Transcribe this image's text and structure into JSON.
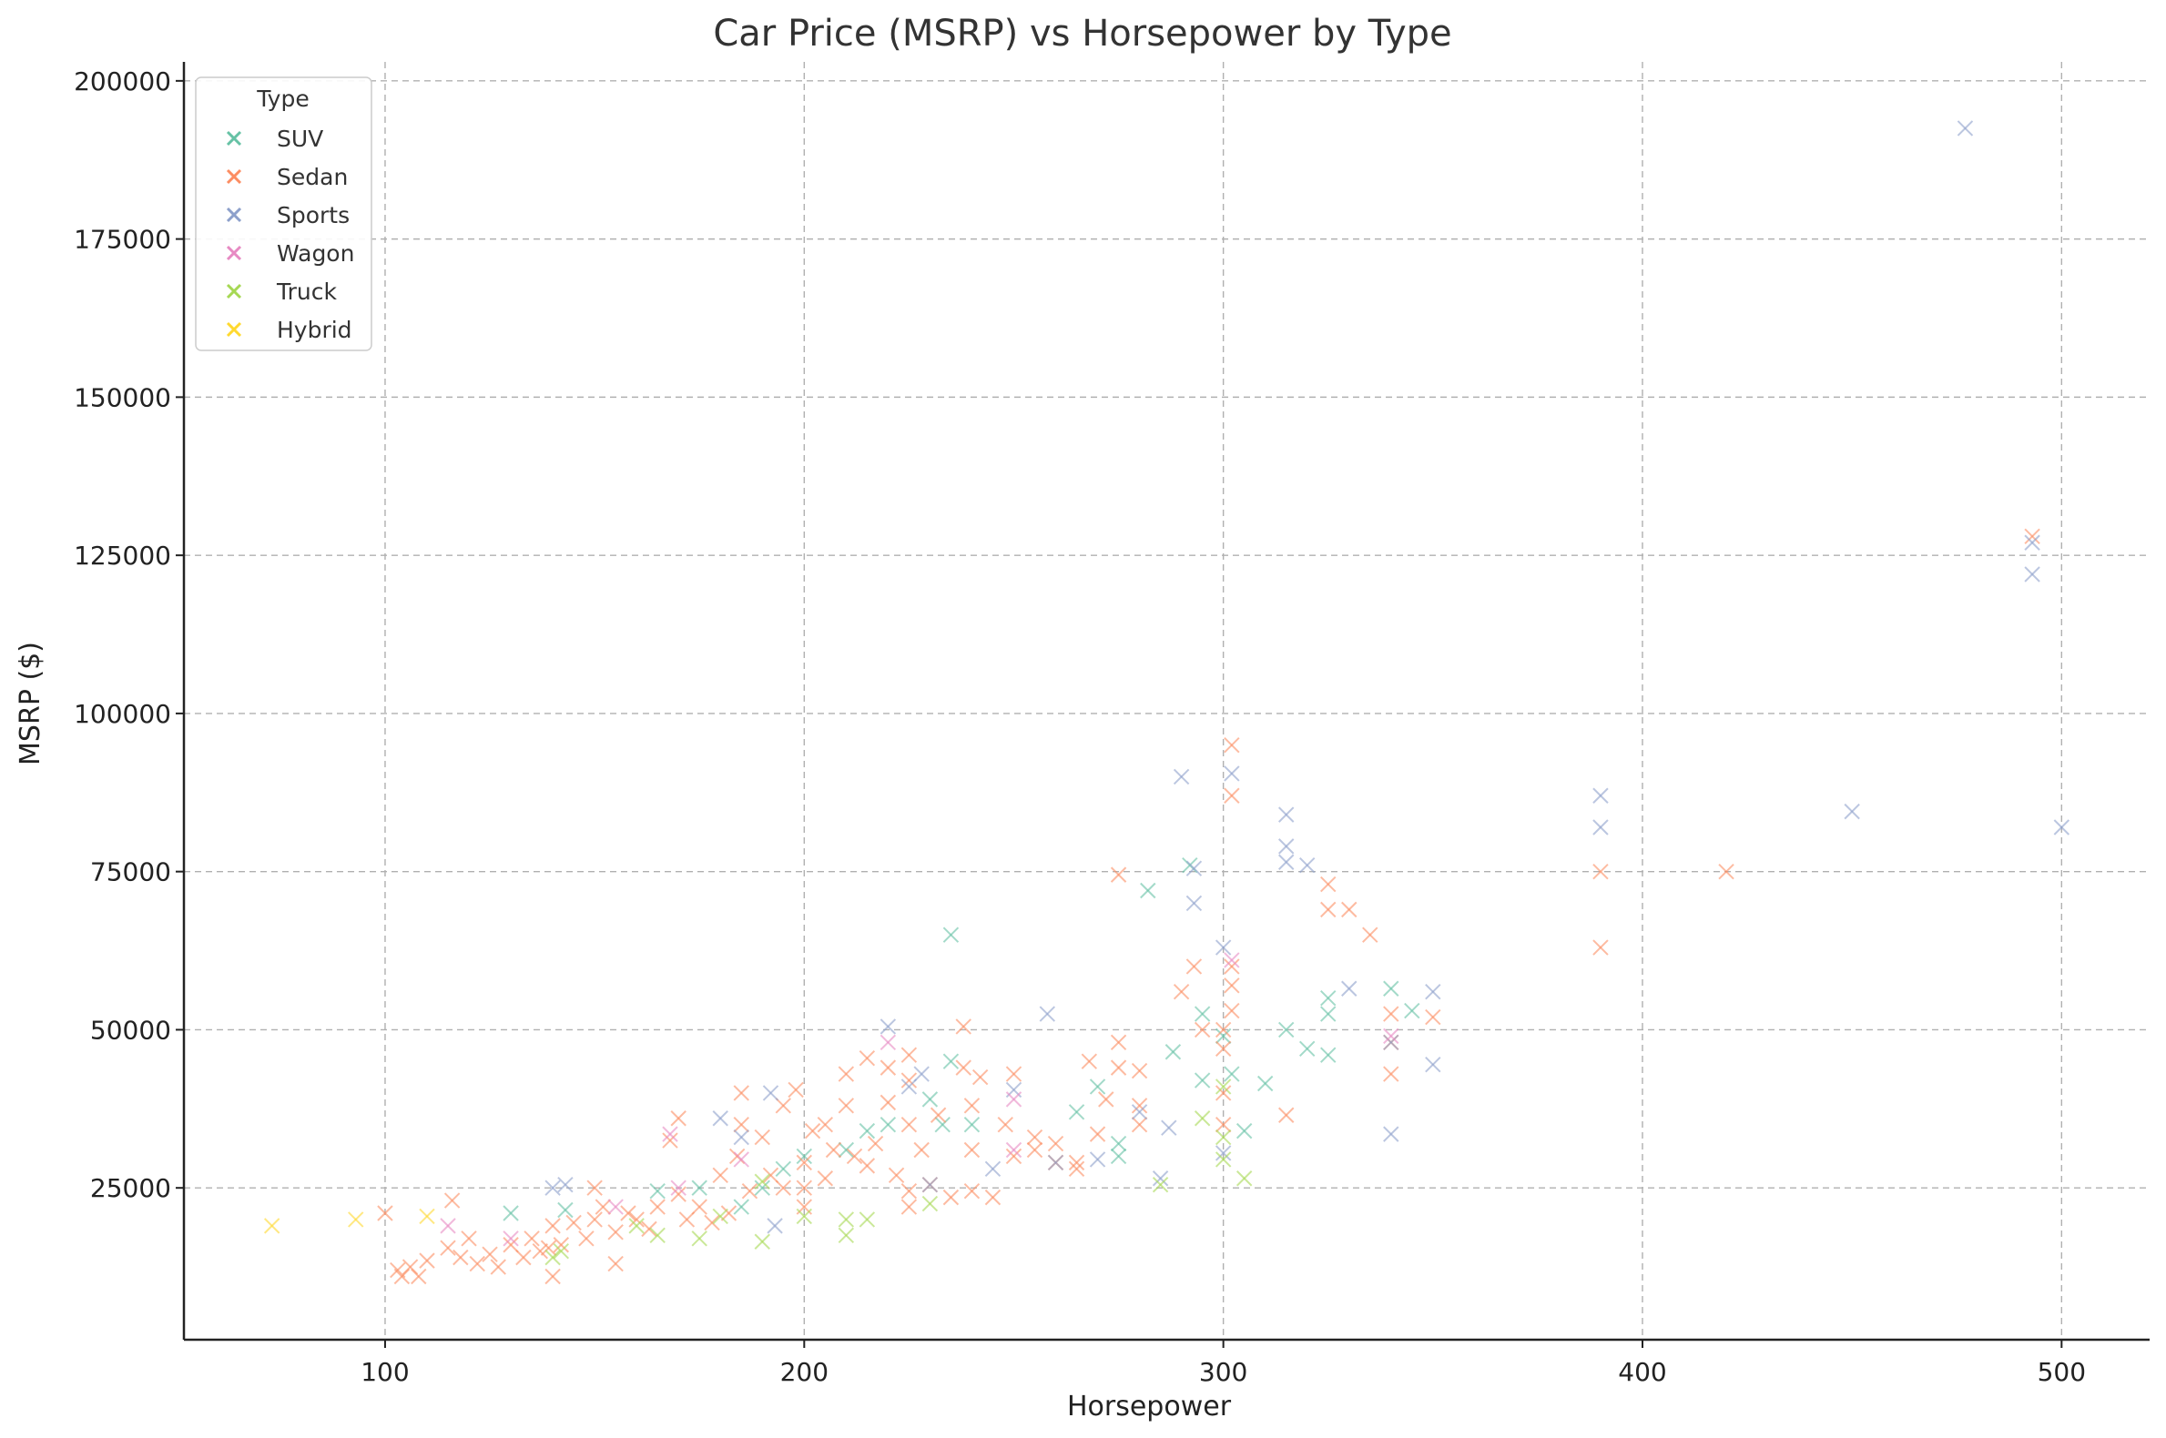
{
  "chart_data": {
    "type": "scatter",
    "title": "Car Price (MSRP) vs Horsepower by Type",
    "xlabel": "Horsepower",
    "ylabel": "MSRP ($)",
    "xlim": [
      52,
      521
    ],
    "ylim": [
      1000,
      203000
    ],
    "xticks": [
      100,
      200,
      300,
      400,
      500
    ],
    "yticks": [
      25000,
      50000,
      75000,
      100000,
      125000,
      150000,
      175000,
      200000
    ],
    "grid": true,
    "marker": "x",
    "legend": {
      "title": "Type",
      "placement": "top-left"
    },
    "colors": {
      "SUV": "#66c2a5",
      "Sedan": "#fc8d62",
      "Sports": "#8da0cb",
      "Wagon": "#e78ac3",
      "Truck": "#a6d854",
      "Hybrid": "#ffd92f"
    },
    "series": [
      {
        "name": "SUV",
        "points": [
          [
            130,
            21000
          ],
          [
            143,
            21500
          ],
          [
            165,
            24500
          ],
          [
            175,
            25000
          ],
          [
            185,
            22000
          ],
          [
            195,
            28000
          ],
          [
            200,
            30000
          ],
          [
            210,
            31000
          ],
          [
            215,
            34000
          ],
          [
            230,
            39000
          ],
          [
            233,
            35000
          ],
          [
            235,
            45000
          ],
          [
            235,
            65000
          ],
          [
            240,
            35000
          ],
          [
            265,
            37000
          ],
          [
            270,
            41000
          ],
          [
            275,
            32000
          ],
          [
            275,
            30000
          ],
          [
            282,
            72000
          ],
          [
            288,
            46500
          ],
          [
            292,
            76000
          ],
          [
            295,
            52500
          ],
          [
            295,
            42000
          ],
          [
            300,
            49000
          ],
          [
            302,
            43000
          ],
          [
            305,
            34000
          ],
          [
            310,
            41500
          ],
          [
            315,
            50000
          ],
          [
            320,
            47000
          ],
          [
            325,
            52500
          ],
          [
            325,
            46000
          ],
          [
            325,
            55000
          ],
          [
            340,
            56500
          ],
          [
            345,
            53000
          ],
          [
            190,
            25000
          ],
          [
            220,
            35000
          ]
        ]
      },
      {
        "name": "Sedan",
        "points": [
          [
            100,
            21000
          ],
          [
            103,
            12000
          ],
          [
            104,
            11000
          ],
          [
            106,
            12500
          ],
          [
            108,
            11000
          ],
          [
            110,
            13500
          ],
          [
            115,
            15500
          ],
          [
            116,
            23000
          ],
          [
            118,
            14000
          ],
          [
            120,
            17000
          ],
          [
            122,
            13000
          ],
          [
            125,
            14500
          ],
          [
            127,
            12500
          ],
          [
            130,
            16000
          ],
          [
            133,
            14000
          ],
          [
            135,
            17000
          ],
          [
            137,
            15000
          ],
          [
            139,
            15500
          ],
          [
            140,
            11000
          ],
          [
            140,
            19000
          ],
          [
            142,
            16000
          ],
          [
            145,
            19500
          ],
          [
            148,
            17000
          ],
          [
            150,
            25000
          ],
          [
            150,
            20000
          ],
          [
            152,
            22000
          ],
          [
            155,
            13000
          ],
          [
            155,
            18000
          ],
          [
            158,
            21000
          ],
          [
            160,
            20000
          ],
          [
            163,
            18500
          ],
          [
            165,
            22000
          ],
          [
            168,
            32500
          ],
          [
            170,
            36000
          ],
          [
            170,
            24000
          ],
          [
            172,
            20000
          ],
          [
            175,
            22000
          ],
          [
            178,
            19500
          ],
          [
            180,
            27000
          ],
          [
            182,
            21000
          ],
          [
            184,
            30000
          ],
          [
            185,
            40000
          ],
          [
            185,
            35000
          ],
          [
            187,
            24500
          ],
          [
            190,
            33000
          ],
          [
            192,
            27000
          ],
          [
            195,
            38000
          ],
          [
            195,
            25000
          ],
          [
            198,
            40500
          ],
          [
            200,
            22000
          ],
          [
            200,
            25000
          ],
          [
            200,
            29000
          ],
          [
            202,
            34000
          ],
          [
            205,
            35000
          ],
          [
            207,
            31000
          ],
          [
            210,
            43000
          ],
          [
            210,
            38000
          ],
          [
            212,
            30000
          ],
          [
            215,
            45500
          ],
          [
            215,
            28500
          ],
          [
            217,
            32000
          ],
          [
            220,
            44000
          ],
          [
            220,
            38500
          ],
          [
            222,
            27000
          ],
          [
            225,
            46000
          ],
          [
            225,
            42000
          ],
          [
            225,
            35000
          ],
          [
            225,
            24500
          ],
          [
            225,
            22000
          ],
          [
            228,
            31000
          ],
          [
            230,
            25500
          ],
          [
            232,
            36500
          ],
          [
            235,
            23500
          ],
          [
            238,
            44000
          ],
          [
            238,
            50500
          ],
          [
            240,
            38000
          ],
          [
            240,
            31000
          ],
          [
            240,
            24500
          ],
          [
            242,
            42500
          ],
          [
            245,
            23500
          ],
          [
            248,
            35000
          ],
          [
            250,
            43000
          ],
          [
            250,
            30000
          ],
          [
            255,
            33000
          ],
          [
            255,
            31000
          ],
          [
            260,
            32000
          ],
          [
            260,
            29000
          ],
          [
            265,
            29000
          ],
          [
            265,
            28000
          ],
          [
            268,
            45000
          ],
          [
            270,
            33500
          ],
          [
            272,
            39000
          ],
          [
            275,
            74500
          ],
          [
            275,
            48000
          ],
          [
            275,
            44000
          ],
          [
            280,
            43500
          ],
          [
            280,
            38000
          ],
          [
            280,
            35000
          ],
          [
            290,
            56000
          ],
          [
            293,
            60000
          ],
          [
            295,
            50000
          ],
          [
            300,
            50000
          ],
          [
            300,
            47000
          ],
          [
            300,
            35000
          ],
          [
            302,
            95000
          ],
          [
            302,
            87000
          ],
          [
            302,
            60000
          ],
          [
            302,
            57000
          ],
          [
            302,
            53000
          ],
          [
            315,
            36500
          ],
          [
            325,
            73000
          ],
          [
            325,
            69000
          ],
          [
            330,
            69000
          ],
          [
            335,
            65000
          ],
          [
            340,
            52500
          ],
          [
            340,
            48000
          ],
          [
            340,
            43000
          ],
          [
            350,
            52000
          ],
          [
            390,
            75000
          ],
          [
            390,
            63000
          ],
          [
            420,
            75000
          ],
          [
            493,
            128000
          ],
          [
            300,
            40000
          ],
          [
            205,
            26500
          ]
        ]
      },
      {
        "name": "Sports",
        "points": [
          [
            140,
            25000
          ],
          [
            143,
            25500
          ],
          [
            180,
            36000
          ],
          [
            185,
            33000
          ],
          [
            192,
            40000
          ],
          [
            193,
            19000
          ],
          [
            220,
            50500
          ],
          [
            225,
            41000
          ],
          [
            228,
            43000
          ],
          [
            230,
            25500
          ],
          [
            245,
            28000
          ],
          [
            250,
            40500
          ],
          [
            258,
            52500
          ],
          [
            260,
            29000
          ],
          [
            270,
            29500
          ],
          [
            280,
            37000
          ],
          [
            285,
            26500
          ],
          [
            287,
            34500
          ],
          [
            290,
            90000
          ],
          [
            293,
            75500
          ],
          [
            293,
            70000
          ],
          [
            300,
            63000
          ],
          [
            300,
            30500
          ],
          [
            302,
            90500
          ],
          [
            315,
            84000
          ],
          [
            315,
            79000
          ],
          [
            315,
            76500
          ],
          [
            320,
            76000
          ],
          [
            330,
            56500
          ],
          [
            340,
            48000
          ],
          [
            340,
            33500
          ],
          [
            350,
            56000
          ],
          [
            350,
            44500
          ],
          [
            390,
            87000
          ],
          [
            390,
            82000
          ],
          [
            450,
            84500
          ],
          [
            477,
            192500
          ],
          [
            493,
            127000
          ],
          [
            493,
            122000
          ],
          [
            500,
            82000
          ]
        ]
      },
      {
        "name": "Wagon",
        "points": [
          [
            115,
            19000
          ],
          [
            130,
            17000
          ],
          [
            155,
            22000
          ],
          [
            168,
            33500
          ],
          [
            170,
            25000
          ],
          [
            185,
            29500
          ],
          [
            220,
            48000
          ],
          [
            250,
            39000
          ],
          [
            250,
            31000
          ],
          [
            302,
            61000
          ],
          [
            340,
            49000
          ]
        ]
      },
      {
        "name": "Truck",
        "points": [
          [
            140,
            14000
          ],
          [
            142,
            15000
          ],
          [
            160,
            19000
          ],
          [
            165,
            17500
          ],
          [
            175,
            17000
          ],
          [
            180,
            20500
          ],
          [
            190,
            16500
          ],
          [
            190,
            26000
          ],
          [
            200,
            20500
          ],
          [
            210,
            17500
          ],
          [
            210,
            20000
          ],
          [
            215,
            20000
          ],
          [
            230,
            22500
          ],
          [
            285,
            25500
          ],
          [
            295,
            36000
          ],
          [
            300,
            29500
          ],
          [
            300,
            33000
          ],
          [
            300,
            41000
          ],
          [
            305,
            26500
          ]
        ]
      },
      {
        "name": "Hybrid",
        "points": [
          [
            73,
            19000
          ],
          [
            93,
            20000
          ],
          [
            110,
            20500
          ]
        ]
      }
    ]
  }
}
